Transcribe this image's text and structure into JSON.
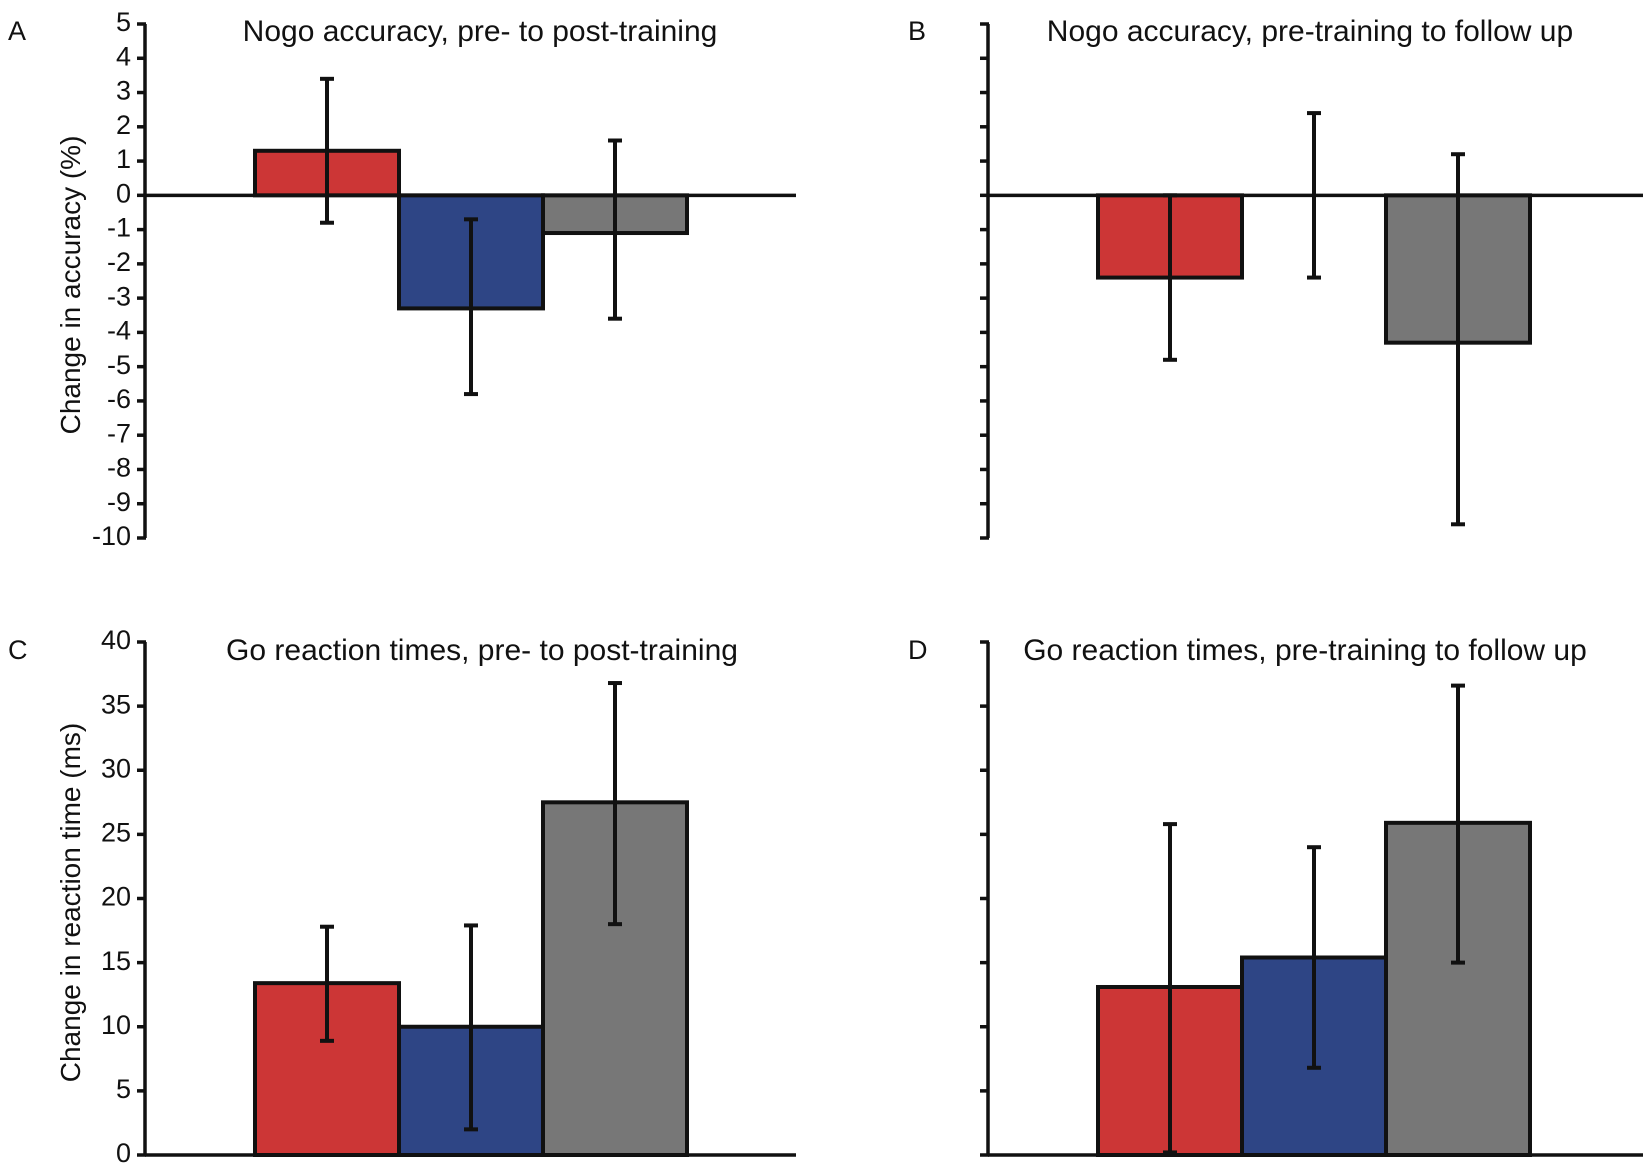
{
  "figure": {
    "colors": {
      "red": "#cc3636",
      "blue": "#2e4585",
      "gray": "#777777",
      "axis": "#111111"
    }
  },
  "chart_data": [
    {
      "panel": "A",
      "type": "bar",
      "title": "Nogo accuracy, pre- to post-training",
      "ylabel": "Change in accuracy (%)",
      "xlabel": "",
      "ylim": [
        -10,
        5
      ],
      "yticks": [
        5,
        4,
        3,
        2,
        1,
        0,
        -1,
        -2,
        -3,
        -4,
        -5,
        -6,
        -7,
        -8,
        -9,
        -10
      ],
      "show_tick_labels": true,
      "bars": [
        {
          "color": "red",
          "value": 1.3,
          "err_low": -0.8,
          "err_high": 3.4
        },
        {
          "color": "blue",
          "value": -3.3,
          "err_low": -5.8,
          "err_high": -0.7
        },
        {
          "color": "gray",
          "value": -1.1,
          "err_low": -3.6,
          "err_high": 1.6
        }
      ]
    },
    {
      "panel": "B",
      "type": "bar",
      "title": "Nogo accuracy, pre-training to follow up",
      "ylabel": "",
      "xlabel": "",
      "ylim": [
        -10,
        5
      ],
      "yticks": [
        5,
        4,
        3,
        2,
        1,
        0,
        -1,
        -2,
        -3,
        -4,
        -5,
        -6,
        -7,
        -8,
        -9,
        -10
      ],
      "show_tick_labels": false,
      "bars": [
        {
          "color": "red",
          "value": -2.4,
          "err_low": -4.8,
          "err_high": 0
        },
        {
          "color": "blue",
          "value": 0,
          "err_low": -2.4,
          "err_high": 2.4
        },
        {
          "color": "gray",
          "value": -4.3,
          "err_low": -9.6,
          "err_high": 1.2
        }
      ]
    },
    {
      "panel": "C",
      "type": "bar",
      "title": "Go reaction times, pre- to post-training",
      "ylabel": "Change in reaction time (ms)",
      "xlabel": "",
      "ylim": [
        0,
        40
      ],
      "yticks": [
        40,
        35,
        30,
        25,
        20,
        15,
        10,
        5,
        0
      ],
      "show_tick_labels": true,
      "bars": [
        {
          "color": "red",
          "value": 13.4,
          "err_low": 8.9,
          "err_high": 17.8
        },
        {
          "color": "blue",
          "value": 10.0,
          "err_low": 2.0,
          "err_high": 17.9
        },
        {
          "color": "gray",
          "value": 27.5,
          "err_low": 18.0,
          "err_high": 36.8
        }
      ]
    },
    {
      "panel": "D",
      "type": "bar",
      "title": "Go reaction times, pre-training to follow up",
      "ylabel": "",
      "xlabel": "",
      "ylim": [
        0,
        40
      ],
      "yticks": [
        40,
        35,
        30,
        25,
        20,
        15,
        10,
        5,
        0
      ],
      "show_tick_labels": false,
      "bars": [
        {
          "color": "red",
          "value": 13.1,
          "err_low": 0.2,
          "err_high": 25.8
        },
        {
          "color": "blue",
          "value": 15.4,
          "err_low": 6.8,
          "err_high": 24.0
        },
        {
          "color": "gray",
          "value": 25.9,
          "err_low": 15.0,
          "err_high": 36.6
        }
      ]
    }
  ]
}
